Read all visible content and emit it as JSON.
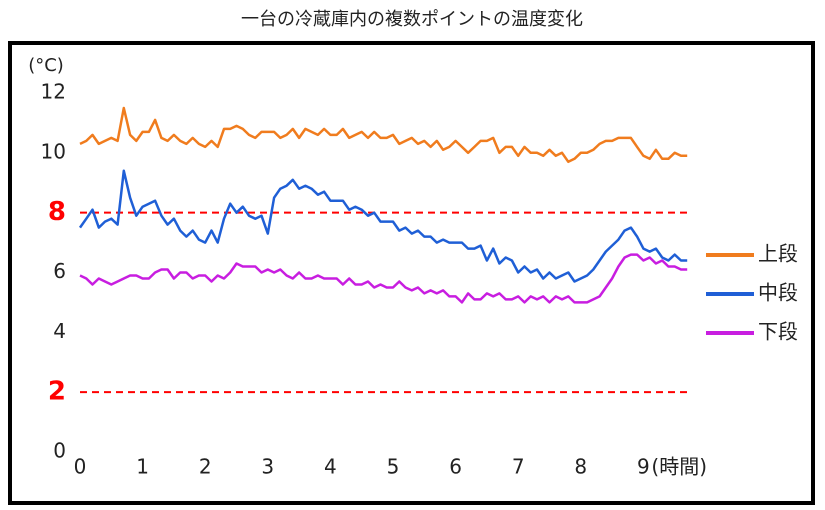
{
  "chart_data": {
    "type": "line",
    "title": "一台の冷蔵庫内の複数ポイントの温度変化",
    "y_unit": "(°C)",
    "x_unit": "(時間)",
    "xlim": [
      0,
      10
    ],
    "xticks": [
      0,
      1,
      2,
      3,
      4,
      5,
      6,
      7,
      8,
      9
    ],
    "ylim": [
      0,
      12
    ],
    "yticks": [
      0,
      4,
      6,
      10,
      12
    ],
    "grid": false,
    "reference_lines": [
      8,
      2
    ],
    "reference_color": "#ff0000",
    "legend": "right",
    "x": [
      0,
      0.1,
      0.2,
      0.3,
      0.4,
      0.5,
      0.6,
      0.7,
      0.8,
      0.9,
      1,
      1.1,
      1.2,
      1.3,
      1.4,
      1.5,
      1.6,
      1.7,
      1.8,
      1.9,
      2,
      2.1,
      2.2,
      2.3,
      2.4,
      2.5,
      2.6,
      2.7,
      2.8,
      2.9,
      3,
      3.1,
      3.2,
      3.3,
      3.4,
      3.5,
      3.6,
      3.7,
      3.8,
      3.9,
      4,
      4.1,
      4.2,
      4.3,
      4.4,
      4.5,
      4.6,
      4.7,
      4.8,
      4.9,
      5,
      5.1,
      5.2,
      5.3,
      5.4,
      5.5,
      5.6,
      5.7,
      5.8,
      5.9,
      6,
      6.1,
      6.2,
      6.3,
      6.4,
      6.5,
      6.6,
      6.7,
      6.8,
      6.9,
      7,
      7.1,
      7.2,
      7.3,
      7.4,
      7.5,
      7.6,
      7.7,
      7.8,
      7.9,
      8,
      8.1,
      8.2,
      8.3,
      8.4,
      8.5,
      8.6,
      8.7,
      8.8,
      8.9,
      9,
      9.1,
      9.2,
      9.3,
      9.4,
      9.5,
      9.6,
      9.7
    ],
    "series": [
      {
        "name": "上段",
        "color": "#f07c1e",
        "values": [
          10.3,
          10.4,
          10.6,
          10.3,
          10.4,
          10.5,
          10.4,
          11.5,
          10.6,
          10.4,
          10.7,
          10.7,
          11.1,
          10.5,
          10.4,
          10.6,
          10.4,
          10.3,
          10.5,
          10.3,
          10.2,
          10.4,
          10.2,
          10.8,
          10.8,
          10.9,
          10.8,
          10.6,
          10.5,
          10.7,
          10.7,
          10.7,
          10.5,
          10.6,
          10.8,
          10.5,
          10.8,
          10.7,
          10.6,
          10.8,
          10.6,
          10.6,
          10.8,
          10.5,
          10.6,
          10.7,
          10.5,
          10.7,
          10.5,
          10.5,
          10.6,
          10.3,
          10.4,
          10.5,
          10.3,
          10.4,
          10.2,
          10.4,
          10.1,
          10.2,
          10.4,
          10.2,
          10.0,
          10.2,
          10.4,
          10.4,
          10.5,
          10.0,
          10.2,
          10.2,
          9.9,
          10.2,
          10.0,
          10.0,
          9.9,
          10.1,
          9.9,
          10.0,
          9.7,
          9.8,
          10.0,
          10.0,
          10.1,
          10.3,
          10.4,
          10.4,
          10.5,
          10.5,
          10.5,
          10.2,
          9.9,
          9.8,
          10.1,
          9.8,
          9.8,
          10.0,
          9.9,
          9.9
        ]
      },
      {
        "name": "中段",
        "color": "#1f5fd6",
        "values": [
          7.5,
          7.8,
          8.1,
          7.5,
          7.7,
          7.8,
          7.6,
          9.4,
          8.5,
          7.9,
          8.2,
          8.3,
          8.4,
          7.9,
          7.6,
          7.8,
          7.4,
          7.2,
          7.4,
          7.1,
          7.0,
          7.4,
          7.0,
          7.8,
          8.3,
          8.0,
          8.2,
          7.9,
          7.8,
          7.9,
          7.3,
          8.5,
          8.8,
          8.9,
          9.1,
          8.8,
          8.9,
          8.8,
          8.6,
          8.7,
          8.4,
          8.4,
          8.4,
          8.1,
          8.2,
          8.1,
          7.9,
          8.0,
          7.7,
          7.7,
          7.7,
          7.4,
          7.5,
          7.3,
          7.4,
          7.2,
          7.2,
          7.0,
          7.1,
          7.0,
          7.0,
          7.0,
          6.8,
          6.8,
          6.9,
          6.4,
          6.8,
          6.3,
          6.5,
          6.4,
          6.0,
          6.2,
          6.0,
          6.1,
          5.8,
          6.0,
          5.8,
          5.9,
          6.0,
          5.7,
          5.8,
          5.9,
          6.1,
          6.4,
          6.7,
          6.9,
          7.1,
          7.4,
          7.5,
          7.2,
          6.8,
          6.7,
          6.8,
          6.5,
          6.4,
          6.6,
          6.4,
          6.4
        ]
      },
      {
        "name": "下段",
        "color": "#c81ee0",
        "values": [
          5.9,
          5.8,
          5.6,
          5.8,
          5.7,
          5.6,
          5.7,
          5.8,
          5.9,
          5.9,
          5.8,
          5.8,
          6.0,
          6.1,
          6.1,
          5.8,
          6.0,
          6.0,
          5.8,
          5.9,
          5.9,
          5.7,
          5.9,
          5.8,
          6.0,
          6.3,
          6.2,
          6.2,
          6.2,
          6.0,
          6.1,
          6.0,
          6.1,
          5.9,
          5.8,
          6.0,
          5.8,
          5.8,
          5.9,
          5.8,
          5.8,
          5.8,
          5.6,
          5.8,
          5.6,
          5.6,
          5.7,
          5.5,
          5.6,
          5.5,
          5.5,
          5.7,
          5.5,
          5.4,
          5.5,
          5.3,
          5.4,
          5.3,
          5.4,
          5.2,
          5.2,
          5.0,
          5.3,
          5.1,
          5.1,
          5.3,
          5.2,
          5.3,
          5.1,
          5.1,
          5.2,
          5.0,
          5.2,
          5.1,
          5.2,
          5.0,
          5.2,
          5.1,
          5.2,
          5.0,
          5.0,
          5.0,
          5.1,
          5.2,
          5.5,
          5.8,
          6.2,
          6.5,
          6.6,
          6.6,
          6.4,
          6.5,
          6.3,
          6.4,
          6.2,
          6.2,
          6.1,
          6.1
        ]
      }
    ]
  }
}
